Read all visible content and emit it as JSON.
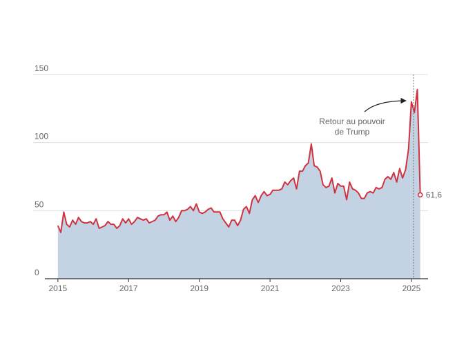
{
  "chart_data": {
    "type": "area-line",
    "x": [
      2015,
      2015.083,
      2015.167,
      2015.25,
      2015.333,
      2015.417,
      2015.5,
      2015.583,
      2015.667,
      2015.75,
      2015.833,
      2015.917,
      2016,
      2016.083,
      2016.167,
      2016.25,
      2016.333,
      2016.417,
      2016.5,
      2016.583,
      2016.667,
      2016.75,
      2016.833,
      2016.917,
      2017,
      2017.083,
      2017.167,
      2017.25,
      2017.333,
      2017.417,
      2017.5,
      2017.583,
      2017.667,
      2017.75,
      2017.833,
      2017.917,
      2018,
      2018.083,
      2018.167,
      2018.25,
      2018.333,
      2018.417,
      2018.5,
      2018.583,
      2018.667,
      2018.75,
      2018.833,
      2018.917,
      2019,
      2019.083,
      2019.167,
      2019.25,
      2019.333,
      2019.417,
      2019.5,
      2019.583,
      2019.667,
      2019.75,
      2019.833,
      2019.917,
      2020,
      2020.083,
      2020.167,
      2020.25,
      2020.333,
      2020.417,
      2020.5,
      2020.583,
      2020.667,
      2020.75,
      2020.833,
      2020.917,
      2021,
      2021.083,
      2021.167,
      2021.25,
      2021.333,
      2021.417,
      2021.5,
      2021.583,
      2021.667,
      2021.75,
      2021.833,
      2021.917,
      2022,
      2022.083,
      2022.167,
      2022.25,
      2022.333,
      2022.417,
      2022.5,
      2022.583,
      2022.667,
      2022.75,
      2022.833,
      2022.917,
      2023,
      2023.083,
      2023.167,
      2023.25,
      2023.333,
      2023.417,
      2023.5,
      2023.583,
      2023.667,
      2023.75,
      2023.833,
      2023.917,
      2024,
      2024.083,
      2024.167,
      2024.25,
      2024.333,
      2024.417,
      2024.5,
      2024.583,
      2024.667,
      2024.75,
      2024.833,
      2024.917,
      2025,
      2025.083,
      2025.167,
      2025.25
    ],
    "series": [
      {
        "color": "#d0323f",
        "fill": "#c3d3e3",
        "values": [
          39,
          34,
          49,
          40,
          38,
          43,
          40,
          45,
          42,
          41,
          41,
          42,
          40,
          44,
          37,
          38,
          39,
          42,
          40,
          40,
          37,
          39,
          44,
          41,
          44,
          40,
          42,
          45,
          44,
          43,
          44,
          41,
          42,
          43,
          46,
          47,
          47,
          49,
          43,
          46,
          42,
          45,
          50,
          50,
          51,
          53,
          50,
          55,
          49,
          48,
          49,
          51,
          52,
          49,
          49,
          49,
          44,
          41,
          38,
          43,
          43,
          39,
          43,
          51,
          53,
          48,
          58,
          61,
          56,
          61,
          64,
          61,
          62,
          65,
          65,
          65,
          66,
          71,
          69,
          72,
          74,
          66,
          79,
          79,
          83,
          85,
          99,
          83,
          82,
          79,
          69,
          67,
          68,
          74,
          63,
          70,
          68,
          68,
          58,
          71,
          66,
          65,
          63,
          59,
          59,
          63,
          64,
          63,
          67,
          66,
          67,
          73,
          75,
          73,
          78,
          71,
          81,
          74,
          80,
          95,
          130,
          122,
          139,
          61.6
        ],
        "value_labels": [
          null,
          null,
          null,
          null,
          null,
          null,
          null,
          null,
          null,
          null,
          null,
          null,
          null,
          null,
          null,
          null,
          null,
          null,
          null,
          null,
          null,
          null,
          null,
          null,
          null,
          null,
          null,
          null,
          null,
          null,
          null,
          null,
          null,
          null,
          null,
          null,
          null,
          null,
          null,
          null,
          null,
          null,
          null,
          null,
          null,
          null,
          null,
          null,
          null,
          null,
          null,
          null,
          null,
          null,
          null,
          null,
          null,
          null,
          null,
          null,
          null,
          null,
          null,
          null,
          null,
          null,
          null,
          null,
          null,
          null,
          null,
          null,
          null,
          null,
          null,
          null,
          null,
          null,
          null,
          null,
          null,
          null,
          null,
          null,
          null,
          null,
          null,
          null,
          null,
          null,
          null,
          null,
          null,
          null,
          null,
          null,
          null,
          null,
          null,
          null,
          null,
          null,
          null,
          null,
          null,
          null,
          null,
          null,
          null,
          null,
          null,
          null,
          null,
          null,
          null,
          null,
          null,
          null,
          null,
          null,
          null,
          null,
          null,
          "61,6"
        ]
      }
    ],
    "annotation": [
      "Retour au pouvoir",
      "de Trump"
    ],
    "xlim": [
      2014.3,
      2025.47
    ],
    "xticks": [
      2015,
      2017,
      2019,
      2021,
      2023,
      2025
    ],
    "ylim": [
      0,
      150
    ],
    "yticks": [
      0,
      50,
      100,
      150
    ],
    "grid": true
  }
}
